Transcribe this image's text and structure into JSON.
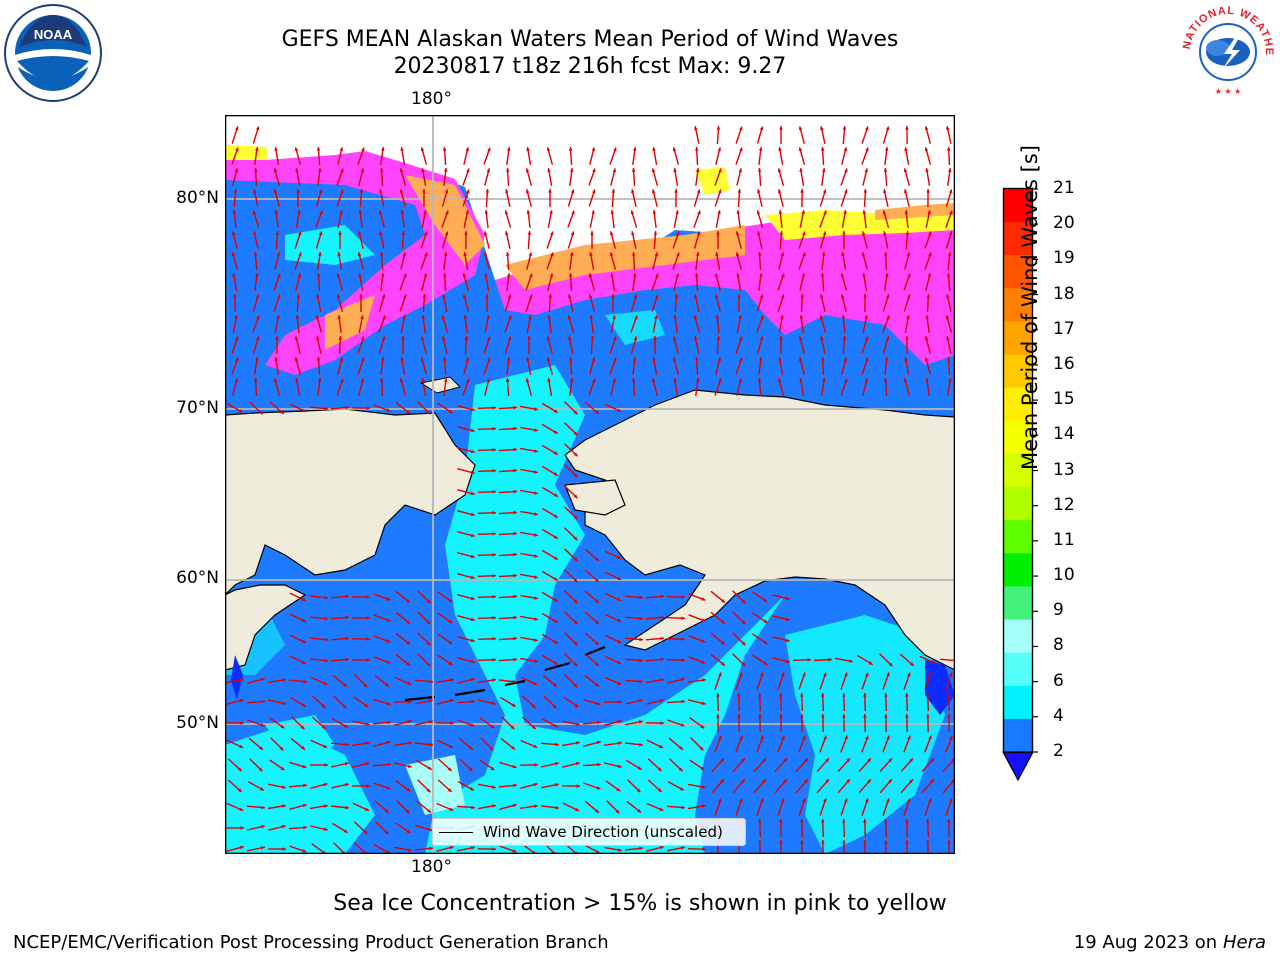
{
  "header": {
    "title_line1": "GEFS MEAN Alaskan Waters Mean Period of Wind Waves",
    "title_line2": "20230817 t18z 216h fcst   Max: 9.27"
  },
  "logos": {
    "left": "NOAA",
    "right": "NATIONAL WEATHER SERVICE"
  },
  "map": {
    "lon_labels": [
      "180°",
      "180°"
    ],
    "lat_labels": [
      "80°N",
      "70°N",
      "60°N",
      "50°N"
    ],
    "legend_label": "Wind Wave Direction (unscaled)",
    "colors": {
      "land": "#efecdb",
      "ocean_low": "#1e7bff",
      "ocean_mid": "#13f4ff",
      "ocean_light": "#a8fff8",
      "ice_pink": "#ff44ff",
      "ice_orange": "#ffae55",
      "ice_yellow": "#ffff33",
      "arrow": "#e00000"
    }
  },
  "colorbar": {
    "label": "Mean Period of Wind Waves [s]",
    "ticks": [
      "21",
      "20",
      "19",
      "18",
      "17",
      "16",
      "15",
      "14",
      "13",
      "12",
      "11",
      "10",
      "9",
      "8",
      "6",
      "4",
      "2"
    ],
    "colors": [
      "#ff0000",
      "#ff2a00",
      "#ff5500",
      "#ff7f00",
      "#ffa300",
      "#ffc800",
      "#ffee00",
      "#f4ff00",
      "#d6ff00",
      "#b0ff00",
      "#60ff00",
      "#00ee00",
      "#44f27a",
      "#a6fff8",
      "#55fff9",
      "#00f0ff",
      "#1a7aff"
    ],
    "under_color": "#1410ff"
  },
  "note": "Sea Ice Concentration > 15% is shown in pink to yellow",
  "footer": {
    "left": "NCEP/EMC/Verification Post Processing Product Generation Branch",
    "date": "19 Aug 2023 on",
    "host": "Hera"
  }
}
